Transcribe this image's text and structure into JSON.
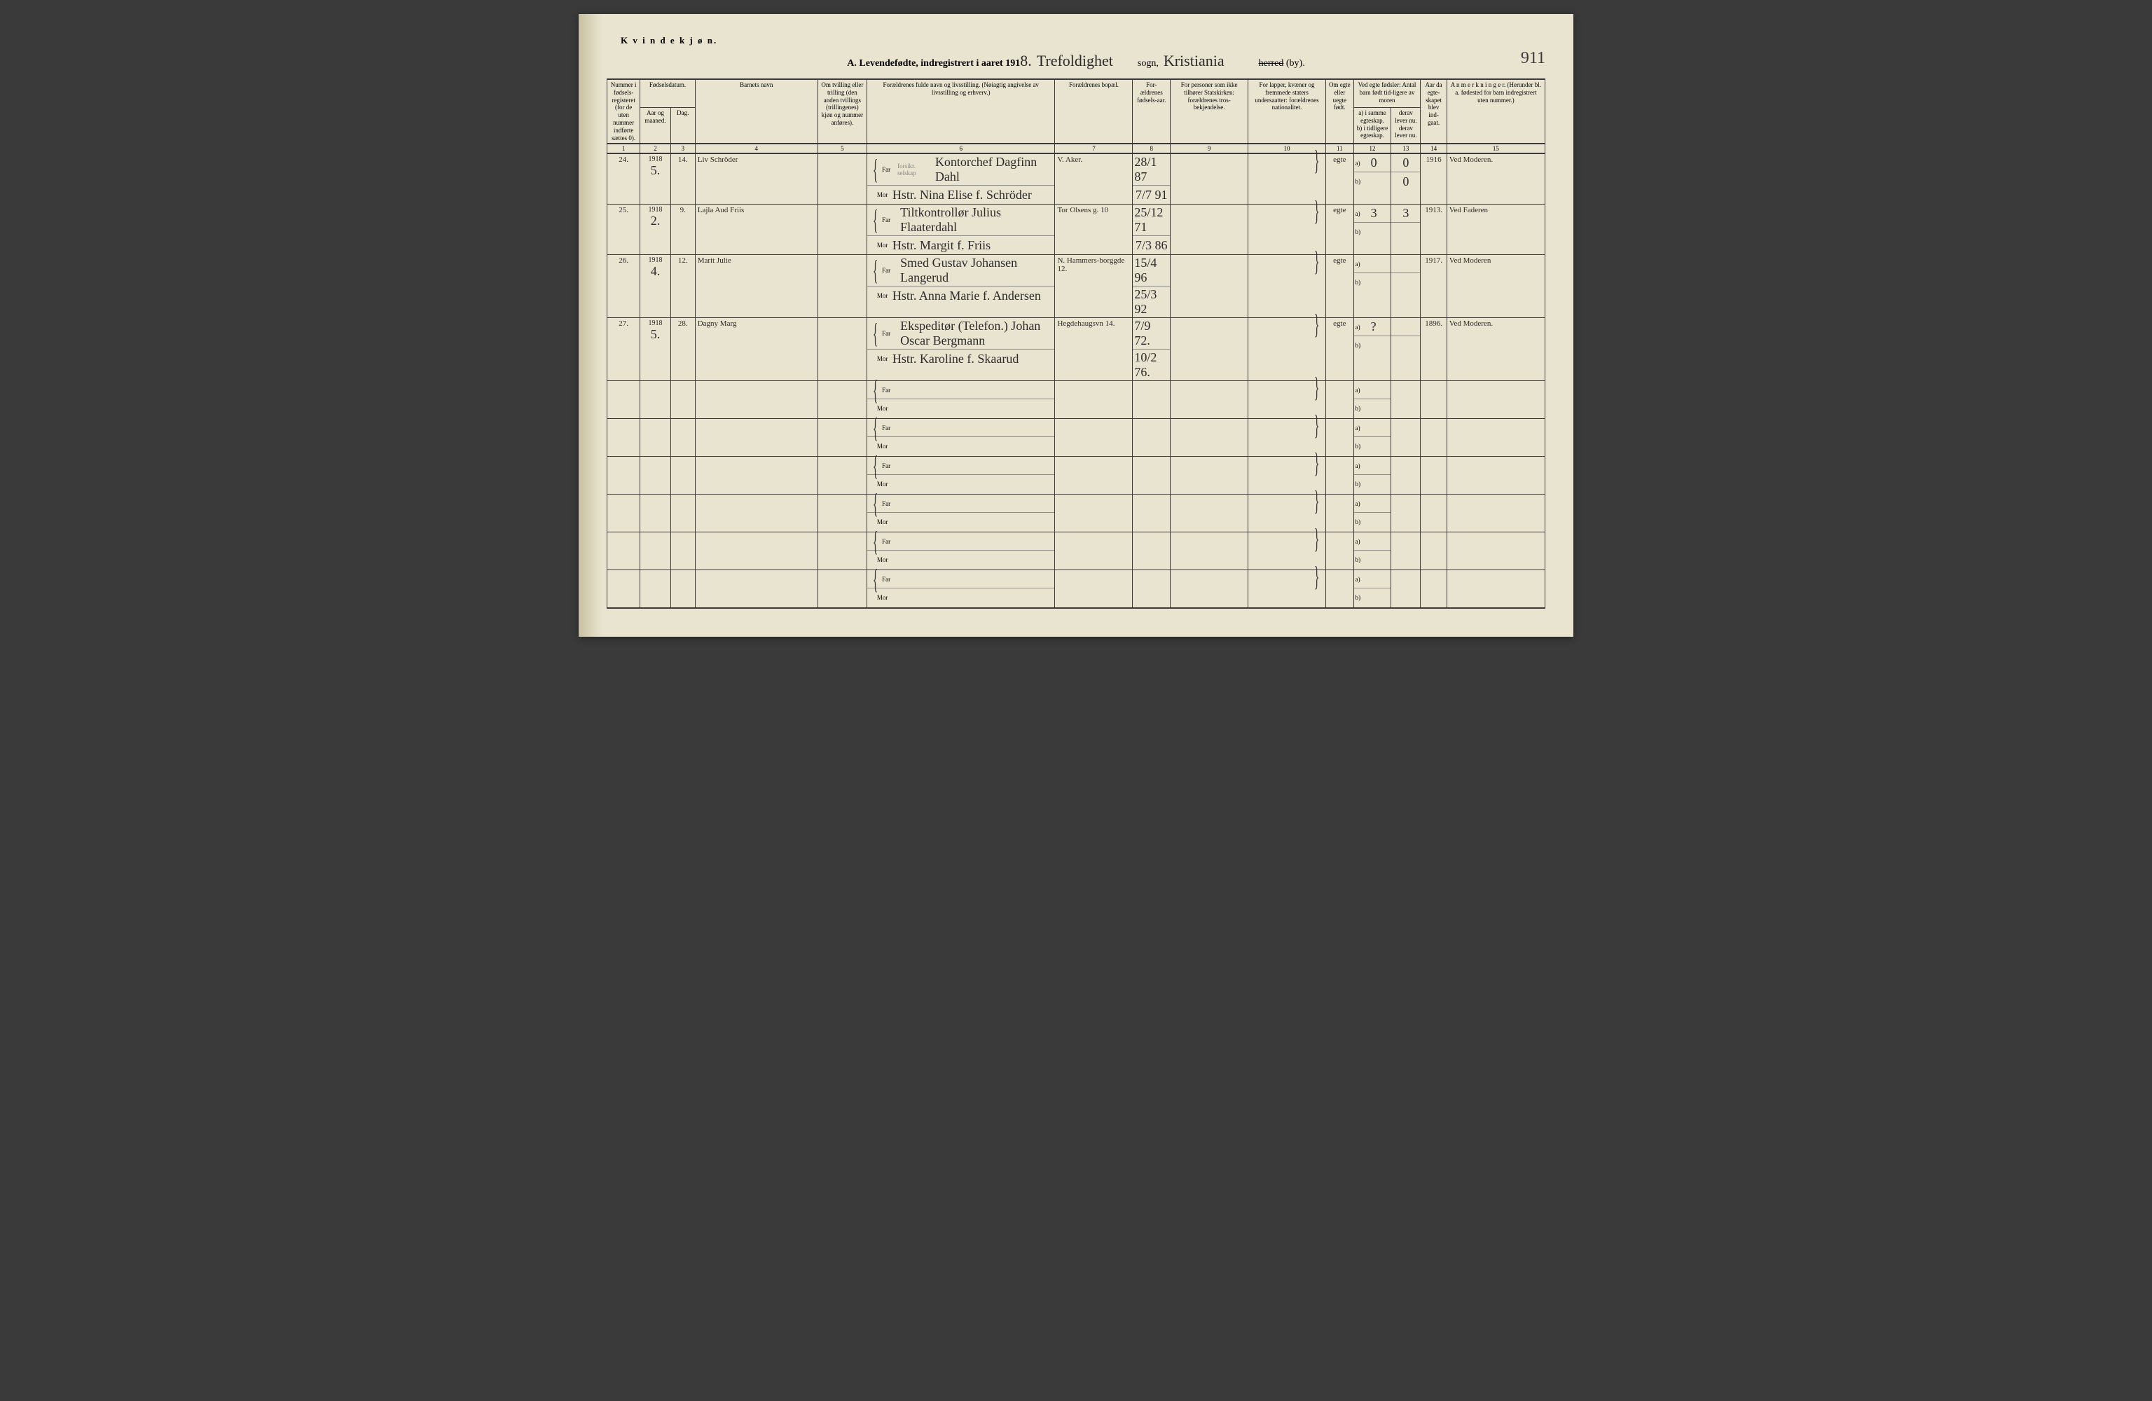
{
  "page": {
    "gender_header": "K v i n d e k j ø n.",
    "title_prefix": "A. Levendefødte, indregistrert i aaret 191",
    "year_suffix": "8.",
    "parish_hand": "Trefoldighet",
    "sogn_label": "sogn,",
    "city_hand": "Kristiania",
    "herred_struck": "herred",
    "by_label": "(by).",
    "page_number": "911"
  },
  "columns": {
    "c1": "Nummer i fødsels-registeret (for de uten nummer indførte sættes 0).",
    "c2_group": "Fødselsdatum.",
    "c2a": "Aar og maaned.",
    "c2b": "Dag.",
    "c4": "Barnets navn",
    "c5": "Om tvilling eller trilling (den anden tvillings (trillingenes) kjøn og nummer anføres).",
    "c6": "Forældrenes fulde navn og livsstilling. (Nøiagtig angivelse av livsstilling og erhverv.)",
    "c7": "Forældrenes bopæl.",
    "c8": "For-ældrenes fødsels-aar.",
    "c9": "For personer som ikke tilhører Statskirken: forældrenes tros-bekjendelse.",
    "c10": "For lapper, kvæner og fremmede staters undersaatter: forældrenes nationalitet.",
    "c11": "Om egte eller uegte født.",
    "c12_group": "Ved egte fødsler: Antal barn født tid-ligere av moren",
    "c12a": "a) i samme egteskap.",
    "c12b": "b) i tidligere egteskap.",
    "c13a": "derav lever nu.",
    "c13b": "derav lever nu.",
    "c14": "Aar da egte-skapet blev ind-gaat.",
    "c15": "A n m e r k n i n g e r. (Herunder bl. a. fødested for barn indregistrert uten nummer.)",
    "far": "Far",
    "mor": "Mor",
    "ab_a": "a)",
    "ab_b": "b)"
  },
  "colnums": [
    "1",
    "2",
    "3",
    "4",
    "5",
    "6",
    "7",
    "8",
    "9",
    "10",
    "11",
    "12",
    "13",
    "14",
    "15"
  ],
  "rows": [
    {
      "num": "24.",
      "year": "1918",
      "month": "5.",
      "day": "14.",
      "name": "Liv Schröder",
      "twin": "",
      "note6": "forsikr. selskap",
      "far": "Kontorchef Dagfinn Dahl",
      "mor": "Hstr. Nina Elise f. Schröder",
      "addr": "V. Aker.",
      "far_birth": "28/1 87",
      "mor_birth": "7/7 91",
      "c9": "",
      "c10": "",
      "legit": "egte",
      "c12a": "0",
      "c12b": "",
      "c13a": "0",
      "c13b2a": "0",
      "c13b2b": "0",
      "c14": "1916",
      "c15": "Ved Moderen."
    },
    {
      "num": "25.",
      "year": "1918",
      "month": "2.",
      "day": "9.",
      "name": "Lajla Aud Friis",
      "twin": "",
      "note6": "",
      "far": "Tiltkontrollør Julius Flaaterdahl",
      "mor": "Hstr. Margit f. Friis",
      "addr": "Tor Olsens g. 10",
      "far_birth": "25/12 71",
      "mor_birth": "7/3 86",
      "c9": "",
      "c10": "",
      "legit": "egte",
      "c12a": "3",
      "c12b": "",
      "c13a": "3",
      "c13b2a": "",
      "c13b2b": "",
      "c14": "1913.",
      "c15": "Ved Faderen"
    },
    {
      "num": "26.",
      "year": "1918",
      "month": "4.",
      "day": "12.",
      "name": "Marit Julie",
      "twin": "",
      "note6": "",
      "far": "Smed Gustav Johansen Langerud",
      "mor": "Hstr. Anna Marie f. Andersen",
      "addr": "N. Hammers-borggde 12.",
      "far_birth": "15/4 96",
      "mor_birth": "25/3 92",
      "c9": "",
      "c10": "",
      "legit": "egte",
      "c12a": "",
      "c12b": "",
      "c13a": "",
      "c13b2a": "",
      "c13b2b": "",
      "c14": "1917.",
      "c15": "Ved Moderen"
    },
    {
      "num": "27.",
      "year": "1918",
      "month": "5.",
      "day": "28.",
      "name": "Dagny Marg",
      "twin": "",
      "note6": "",
      "far": "Ekspeditør (Telefon.) Johan Oscar Bergmann",
      "mor": "Hstr. Karoline f. Skaarud",
      "addr": "Hegdehaugsvn 14.",
      "far_birth": "7/9 72.",
      "mor_birth": "10/2 76.",
      "c9": "",
      "c10": "",
      "legit": "egte",
      "c12a": "?",
      "c12b": "",
      "c13a": "",
      "c13b2a": "",
      "c13b2b": "",
      "c14": "1896.",
      "c15": "Ved Moderen."
    }
  ],
  "empty_count": 6,
  "colors": {
    "paper": "#e8e4d0",
    "ink": "#3a3a3a",
    "hand": "#2a2a2a",
    "rule": "#3a3a3a"
  }
}
